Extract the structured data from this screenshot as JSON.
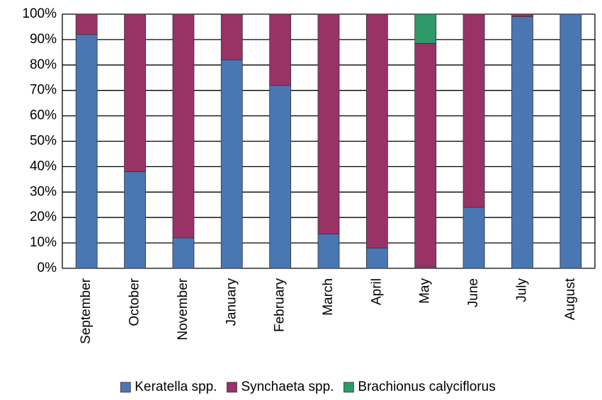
{
  "chart_data": {
    "type": "stacked_bar",
    "categories": [
      "September",
      "October",
      "November",
      "January",
      "February",
      "March",
      "April",
      "May",
      "June",
      "July",
      "August"
    ],
    "series": [
      {
        "name": "Keratella spp.",
        "color": "#4a76b4",
        "values": [
          92,
          38,
          12,
          82,
          72,
          13.5,
          8,
          0.5,
          24,
          99,
          100
        ]
      },
      {
        "name": "Synchaeta spp.",
        "color": "#993366",
        "values": [
          8,
          62,
          88,
          18,
          28,
          86.5,
          92,
          88,
          76,
          1,
          0
        ]
      },
      {
        "name": "Brachionus calyciflorus",
        "color": "#2e9a6a",
        "values": [
          0,
          0,
          0,
          0,
          0,
          0,
          0,
          11.5,
          0,
          0,
          0
        ]
      }
    ],
    "ylim": [
      0,
      100
    ],
    "yticks": [
      {
        "value": 0,
        "label": "0%"
      },
      {
        "value": 10,
        "label": "10%"
      },
      {
        "value": 20,
        "label": "20%"
      },
      {
        "value": 30,
        "label": "30%"
      },
      {
        "value": 40,
        "label": "40%"
      },
      {
        "value": 50,
        "label": "50%"
      },
      {
        "value": 60,
        "label": "60%"
      },
      {
        "value": 70,
        "label": "70%"
      },
      {
        "value": 80,
        "label": "80%"
      },
      {
        "value": 90,
        "label": "90%"
      },
      {
        "value": 100,
        "label": "100%"
      }
    ],
    "grid": true,
    "legend": "bottom"
  }
}
